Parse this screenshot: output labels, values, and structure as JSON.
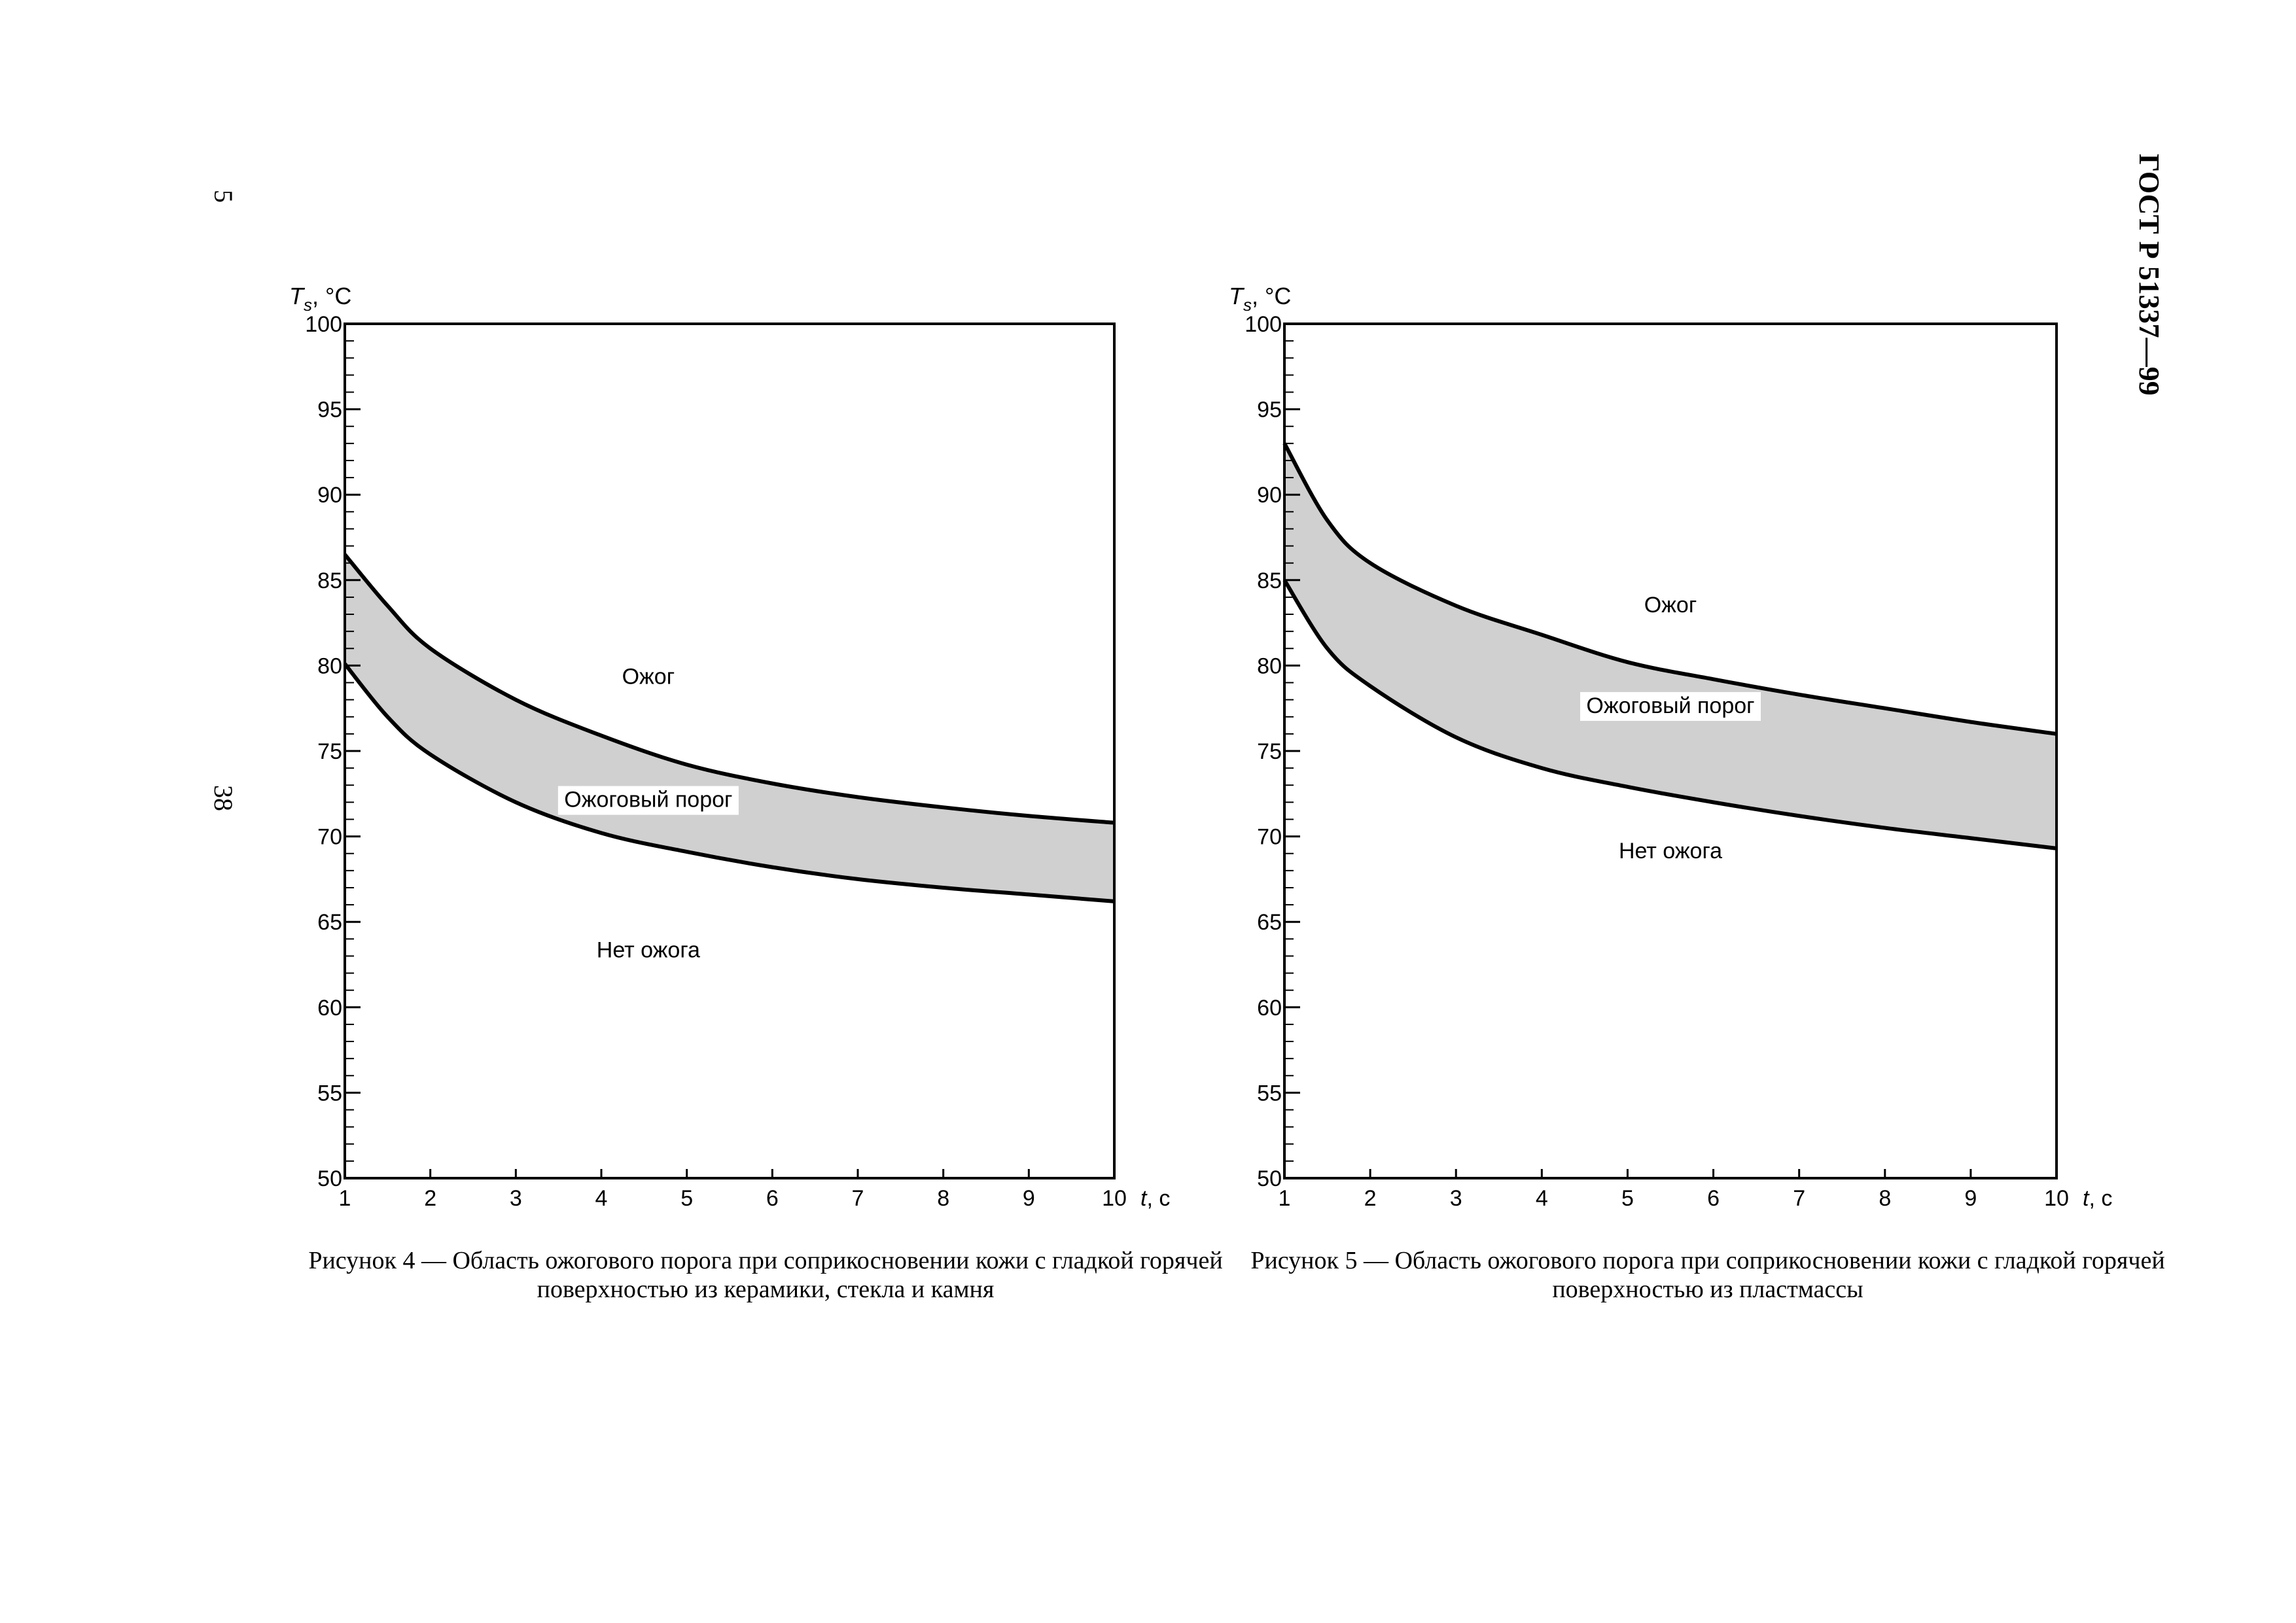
{
  "document": {
    "title": "ГОСТ Р 51337—99",
    "page_number_top": "5",
    "page_number_middle": "38"
  },
  "figures": [
    {
      "caption": "Рисунок 4 — Область ожогового порога при соприкосновении кожи с гладкой горячей поверхностью из керамики, стекла и камня",
      "region_labels": {
        "burn": "Ожог",
        "threshold": "Ожоговый порог",
        "no_burn": "Нет ожога"
      }
    },
    {
      "caption": "Рисунок 5 — Область ожогового порога при соприкосновении кожи с гладкой горячей поверхностью из пластмассы",
      "region_labels": {
        "burn": "Ожог",
        "threshold": "Ожоговый порог",
        "no_burn": "Нет ожога"
      }
    }
  ],
  "chart_data": [
    {
      "type": "area",
      "ylabel_main": "T",
      "ylabel_sub": "s",
      "ylabel_unit": ", °C",
      "xlabel_main": "t",
      "xlabel_unit": ", с",
      "xlim": [
        1,
        10
      ],
      "ylim": [
        50,
        100
      ],
      "x_ticks": [
        1,
        2,
        3,
        4,
        5,
        6,
        7,
        8,
        9,
        10
      ],
      "y_ticks": [
        50,
        55,
        60,
        65,
        70,
        75,
        80,
        85,
        90,
        95,
        100
      ],
      "series": [
        {
          "x": [
            1,
            1.5,
            2,
            3,
            4,
            5,
            6,
            7,
            8,
            9,
            10
          ],
          "upper": [
            86.5,
            83.5,
            81,
            78,
            75.9,
            74.2,
            73.1,
            72.3,
            71.7,
            71.2,
            70.8
          ],
          "lower": [
            80.1,
            77,
            74.8,
            72,
            70.2,
            69.1,
            68.2,
            67.5,
            67,
            66.6,
            66.2
          ]
        }
      ],
      "fill_color": "#d0d0d0",
      "line_color": "#000000"
    },
    {
      "type": "area",
      "ylabel_main": "T",
      "ylabel_sub": "s",
      "ylabel_unit": ", °C",
      "xlabel_main": "t",
      "xlabel_unit": ", с",
      "xlim": [
        1,
        10
      ],
      "ylim": [
        50,
        100
      ],
      "x_ticks": [
        1,
        2,
        3,
        4,
        5,
        6,
        7,
        8,
        9,
        10
      ],
      "y_ticks": [
        50,
        55,
        60,
        65,
        70,
        75,
        80,
        85,
        90,
        95,
        100
      ],
      "series": [
        {
          "x": [
            1,
            1.5,
            2,
            3,
            4,
            5,
            6,
            7,
            8,
            9,
            10
          ],
          "upper": [
            93,
            88.5,
            86,
            83.5,
            81.8,
            80.2,
            79.2,
            78.3,
            77.5,
            76.7,
            76
          ],
          "lower": [
            85,
            81,
            78.8,
            75.8,
            74,
            72.9,
            72,
            71.2,
            70.5,
            69.9,
            69.3
          ]
        }
      ],
      "fill_color": "#d0d0d0",
      "line_color": "#000000"
    }
  ]
}
